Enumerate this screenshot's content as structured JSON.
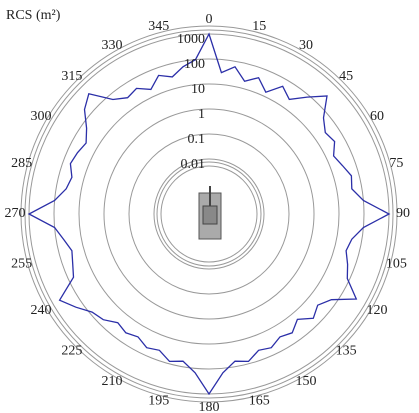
{
  "chart_data": {
    "type": "polar",
    "title": "RCS (m²)",
    "theta": [
      0,
      5,
      10,
      15,
      20,
      25,
      30,
      35,
      40,
      45,
      50,
      55,
      60,
      65,
      70,
      75,
      80,
      85,
      90,
      95,
      100,
      105,
      110,
      115,
      120,
      125,
      130,
      135,
      140,
      145,
      150,
      155,
      160,
      165,
      170,
      175,
      180,
      185,
      190,
      195,
      200,
      205,
      210,
      215,
      220,
      225,
      230,
      235,
      240,
      245,
      250,
      255,
      260,
      265,
      270,
      275,
      280,
      285,
      290,
      295,
      300,
      305,
      310,
      315,
      320,
      325,
      330,
      335,
      340,
      345,
      350,
      355
    ],
    "values": [
      1000,
      30,
      60,
      20,
      40,
      15,
      50,
      25,
      80,
      300,
      60,
      30,
      40,
      20,
      30,
      50,
      40,
      100,
      1000,
      100,
      40,
      30,
      50,
      80,
      400,
      60,
      30,
      50,
      20,
      40,
      30,
      50,
      40,
      80,
      60,
      150,
      1000,
      150,
      60,
      80,
      40,
      50,
      30,
      40,
      30,
      60,
      80,
      200,
      500,
      60,
      40,
      30,
      50,
      100,
      1000,
      100,
      40,
      30,
      50,
      40,
      30,
      60,
      200,
      400,
      60,
      30,
      40,
      20,
      50,
      30,
      60,
      100
    ],
    "color": "#2b2fa8",
    "rlim": [
      0.01,
      1000
    ],
    "rticks": [
      0.01,
      0.1,
      1,
      10,
      100,
      1000
    ],
    "log_scale": true,
    "theta_ticks": [
      0,
      15,
      30,
      45,
      60,
      75,
      90,
      105,
      120,
      135,
      150,
      165,
      180,
      195,
      210,
      225,
      240,
      255,
      270,
      285,
      300,
      315,
      330,
      345
    ]
  }
}
